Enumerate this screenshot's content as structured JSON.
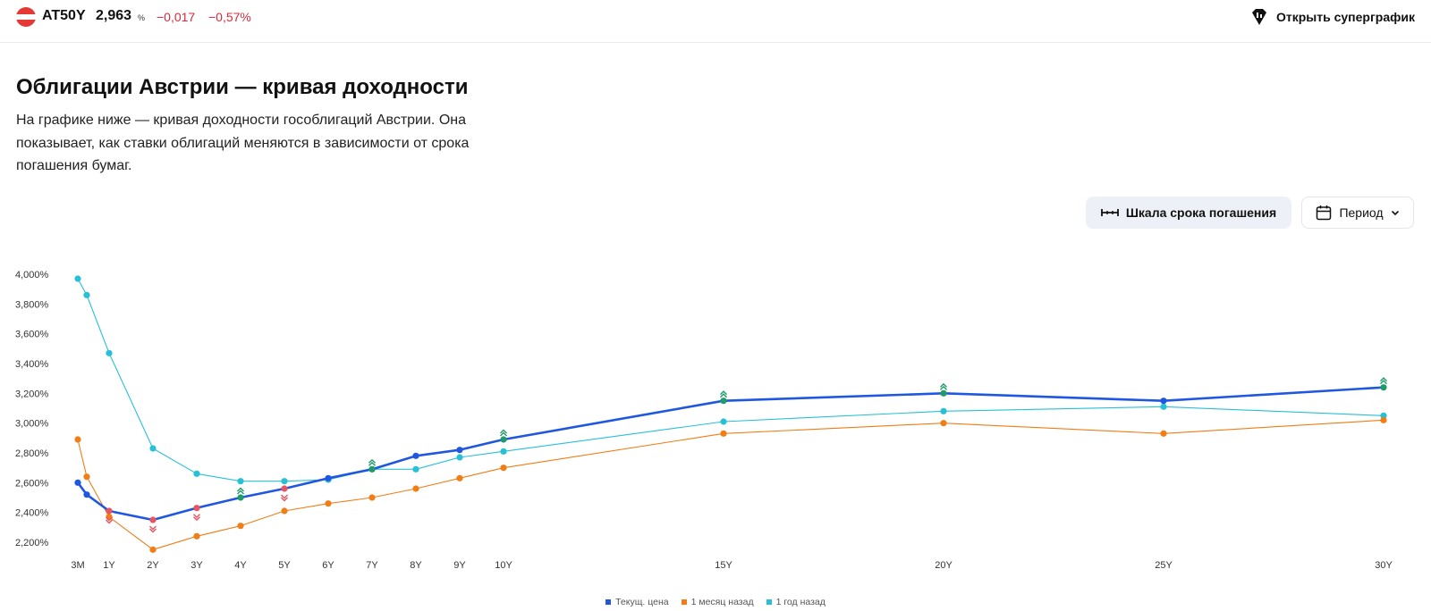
{
  "header": {
    "ticker": "AT50Y",
    "price": "2,963",
    "price_unit": "%",
    "change": "−0,017",
    "change_pct": "−0,57%",
    "super_label": "Открыть суперграфик"
  },
  "page": {
    "title": "Облигации Австрии — кривая доходности",
    "description": "На графике ниже — кривая доходности гособлигаций Австрии. Она показывает, как ставки облигаций меняются в зависимости от срока погашения бумаг."
  },
  "controls": {
    "scale_label": "Шкала срока погашения",
    "period_label": "Период"
  },
  "colors": {
    "current": "#1f57e0",
    "month": "#f07d16",
    "year": "#27c0d6",
    "up": "#1f9a6b",
    "down": "#e8545f"
  },
  "chart_data": {
    "type": "line",
    "title": "",
    "xlabel": "",
    "ylabel": "",
    "ylim": [
      2.1,
      4.05
    ],
    "y_ticks": [
      "2,200%",
      "2,400%",
      "2,600%",
      "2,800%",
      "3,000%",
      "3,200%",
      "3,400%",
      "3,600%",
      "3,800%",
      "4,000%"
    ],
    "y_tick_values": [
      2.2,
      2.4,
      2.6,
      2.8,
      3.0,
      3.2,
      3.4,
      3.6,
      3.8,
      4.0
    ],
    "x_tick_labels": [
      "3M",
      "1Y",
      "2Y",
      "3Y",
      "4Y",
      "5Y",
      "6Y",
      "7Y",
      "8Y",
      "9Y",
      "10Y",
      "15Y",
      "20Y",
      "25Y",
      "30Y"
    ],
    "x_tick_values": [
      0.25,
      1,
      2,
      3,
      4,
      5,
      6,
      7,
      8,
      9,
      10,
      15,
      20,
      25,
      30
    ],
    "x": [
      0.25,
      0.5,
      1,
      2,
      3,
      4,
      5,
      6,
      7,
      8,
      9,
      10,
      15,
      20,
      25,
      30
    ],
    "legend_position": "bottom",
    "series": [
      {
        "name": "Текущ. цена",
        "values": [
          2.6,
          2.52,
          2.41,
          2.35,
          2.43,
          2.5,
          2.56,
          2.63,
          2.69,
          2.78,
          2.82,
          2.89,
          3.15,
          3.2,
          3.15,
          3.24
        ],
        "direction": [
          "",
          "",
          "down",
          "down",
          "down",
          "up",
          "down",
          "",
          "up",
          "",
          "",
          "up",
          "up",
          "up",
          "",
          "up"
        ]
      },
      {
        "name": "1 месяц назад",
        "values": [
          2.89,
          2.64,
          2.37,
          2.15,
          2.24,
          2.31,
          2.41,
          2.46,
          2.5,
          2.56,
          2.63,
          2.7,
          2.93,
          3.0,
          2.93,
          3.02
        ]
      },
      {
        "name": "1 год назад",
        "values": [
          3.97,
          3.86,
          3.47,
          2.83,
          2.66,
          2.61,
          2.61,
          2.62,
          2.69,
          2.69,
          2.77,
          2.81,
          3.01,
          3.08,
          3.11,
          3.05
        ]
      }
    ]
  }
}
